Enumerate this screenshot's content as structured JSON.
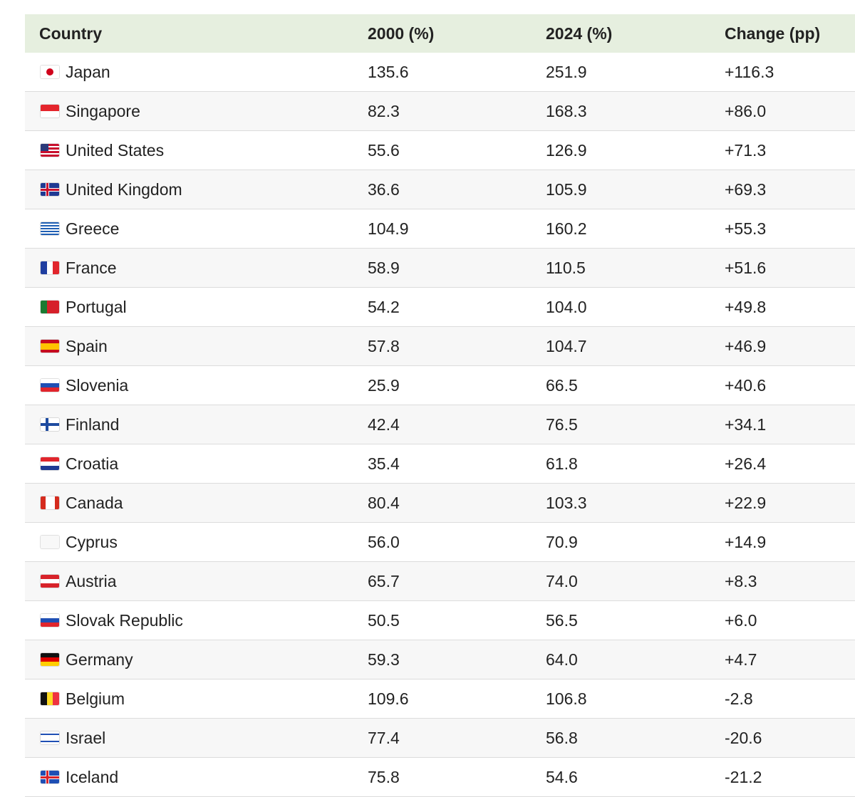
{
  "table": {
    "columns": [
      "Country",
      "2000 (%)",
      "2024 (%)",
      "Change (pp)"
    ],
    "rows": [
      [
        "Japan",
        "135.6",
        "251.9",
        "+116.3"
      ],
      [
        "Singapore",
        "82.3",
        "168.3",
        "+86.0"
      ],
      [
        "United States",
        "55.6",
        "126.9",
        "+71.3"
      ],
      [
        "United Kingdom",
        "36.6",
        "105.9",
        "+69.3"
      ],
      [
        "Greece",
        "104.9",
        "160.2",
        "+55.3"
      ],
      [
        "France",
        "58.9",
        "110.5",
        "+51.6"
      ],
      [
        "Portugal",
        "54.2",
        "104.0",
        "+49.8"
      ],
      [
        "Spain",
        "57.8",
        "104.7",
        "+46.9"
      ],
      [
        "Slovenia",
        "25.9",
        "66.5",
        "+40.6"
      ],
      [
        "Finland",
        "42.4",
        "76.5",
        "+34.1"
      ],
      [
        "Croatia",
        "35.4",
        "61.8",
        "+26.4"
      ],
      [
        "Canada",
        "80.4",
        "103.3",
        "+22.9"
      ],
      [
        "Cyprus",
        "56.0",
        "70.9",
        "+14.9"
      ],
      [
        "Austria",
        "65.7",
        "74.0",
        "+8.3"
      ],
      [
        "Slovak Republic",
        "50.5",
        "56.5",
        "+6.0"
      ],
      [
        "Germany",
        "59.3",
        "64.0",
        "+4.7"
      ],
      [
        "Belgium",
        "109.6",
        "106.8",
        "-2.8"
      ],
      [
        "Israel",
        "77.4",
        "56.8",
        "-20.6"
      ],
      [
        "Iceland",
        "75.8",
        "54.6",
        "-21.2"
      ]
    ]
  }
}
